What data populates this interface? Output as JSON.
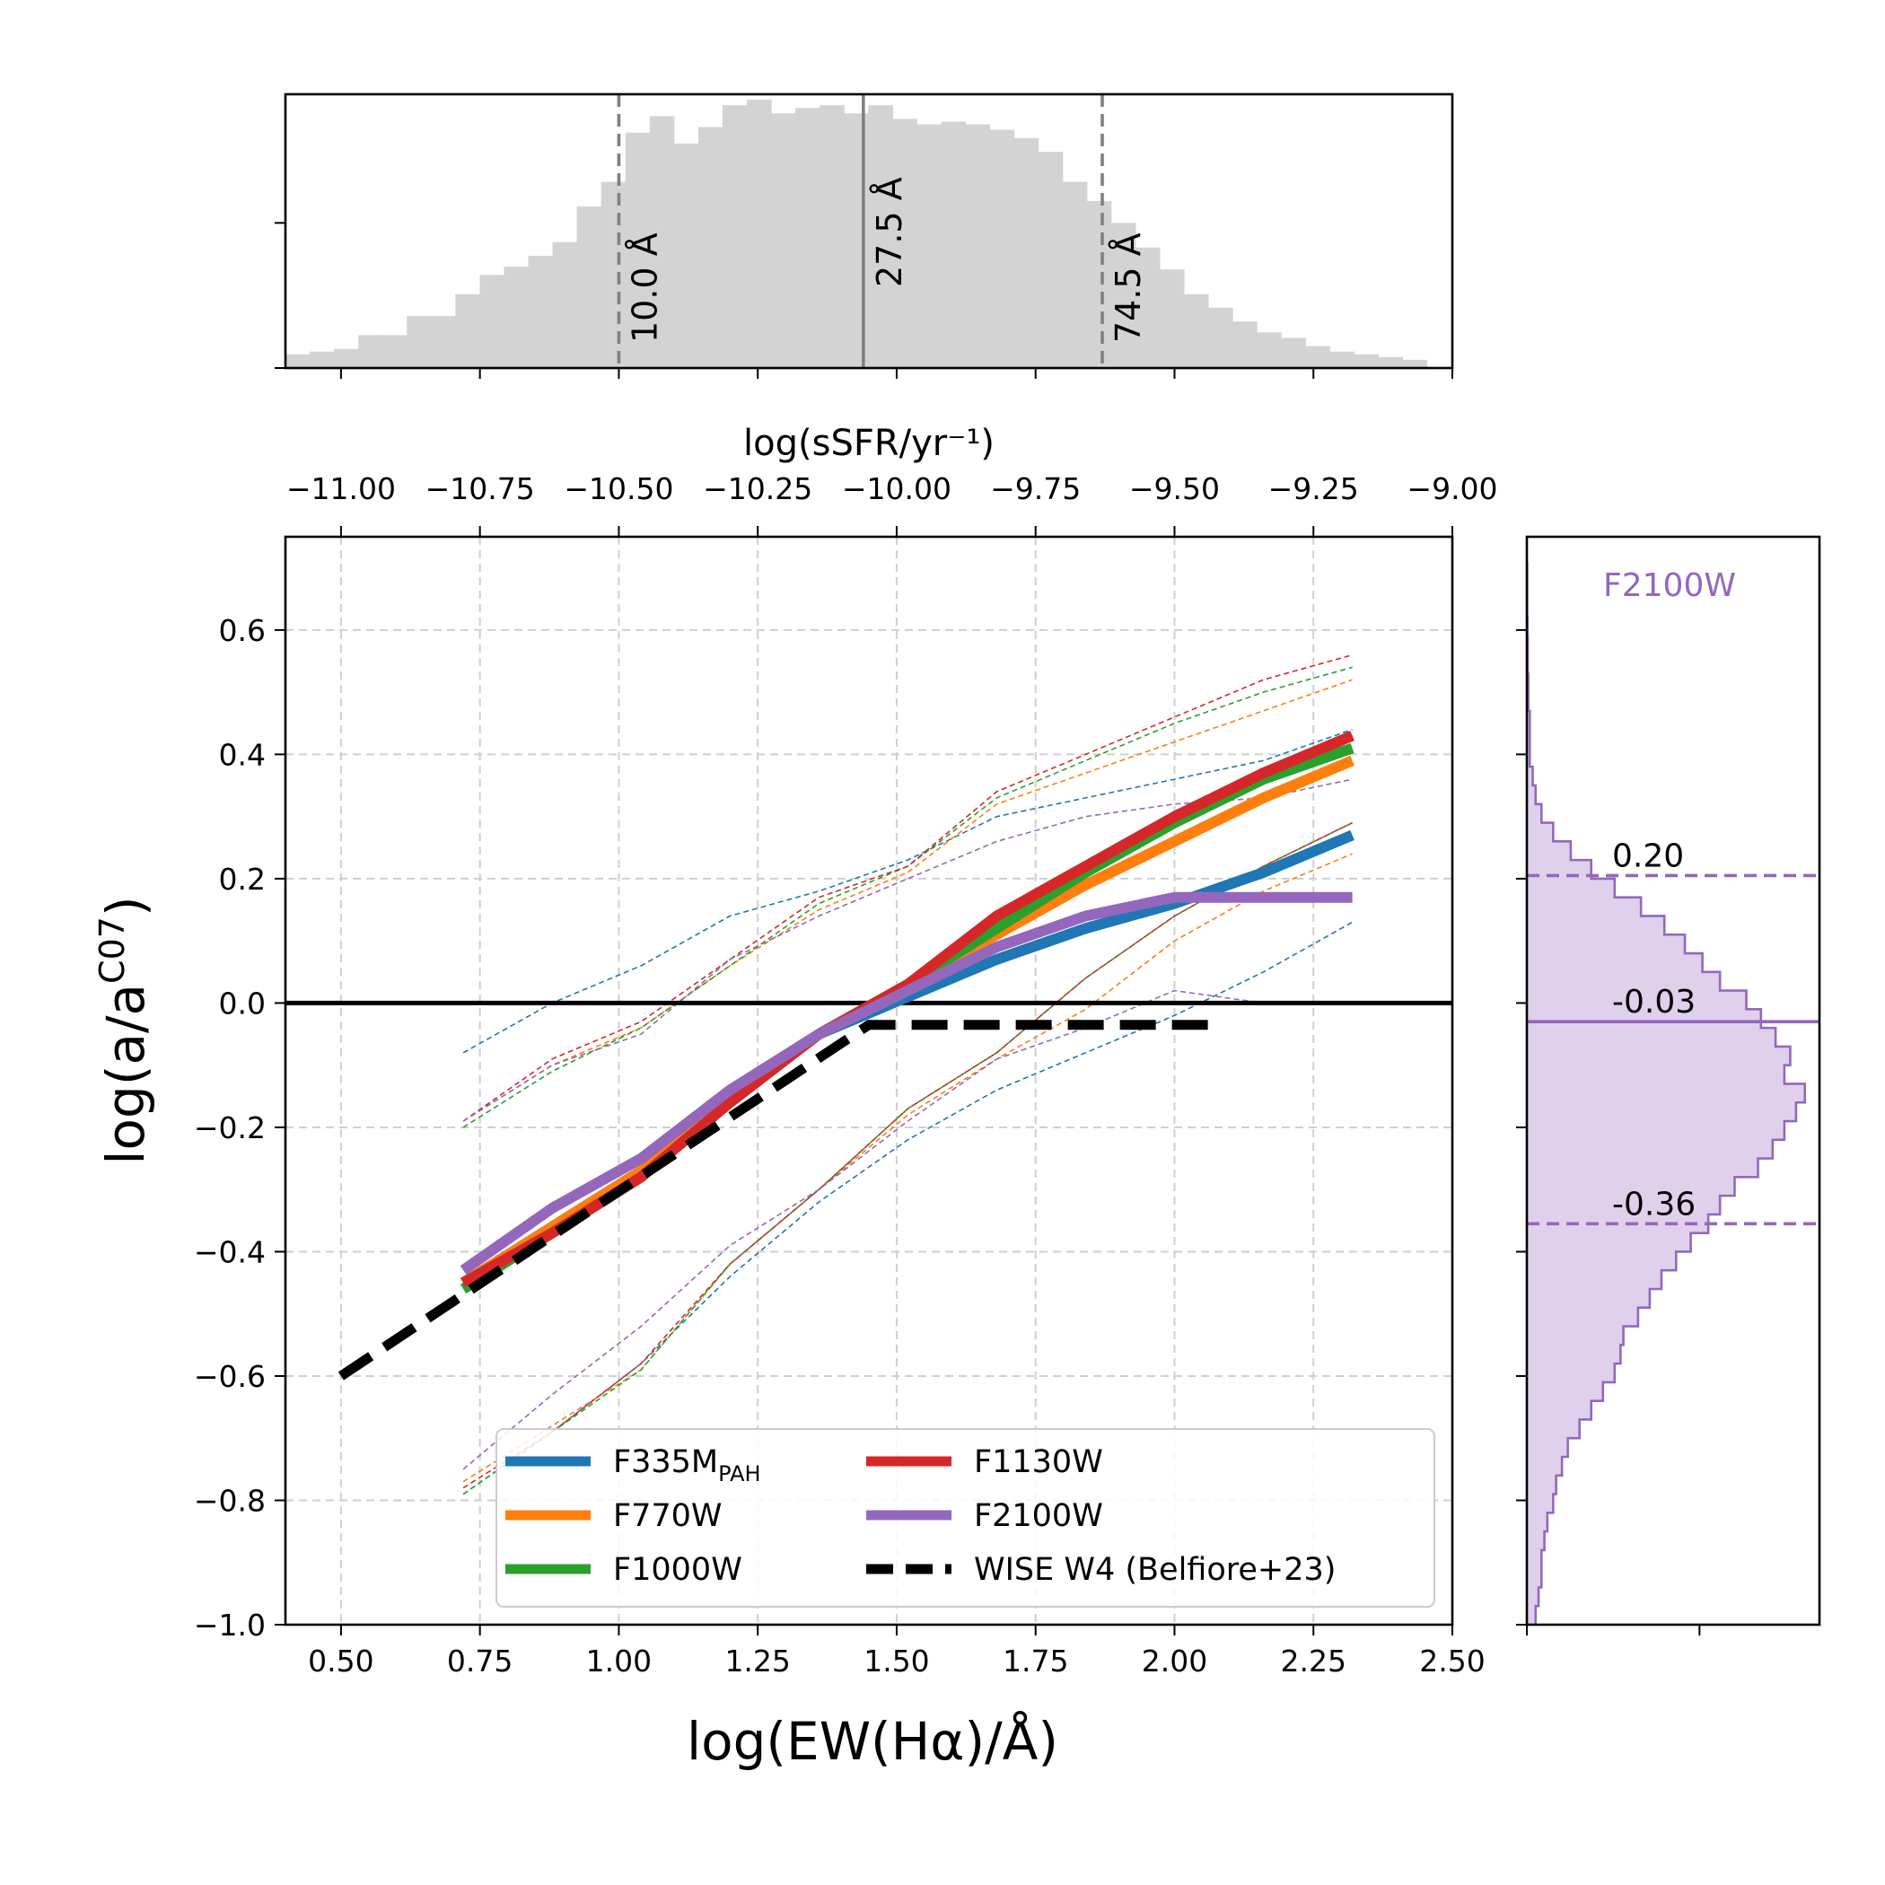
{
  "chart_data": [
    {
      "type": "histogram",
      "panel": "top",
      "xlabel": "log(sSFR/yr⁻¹)",
      "xlim": [
        0.4,
        2.5
      ],
      "x_tick_values": [
        0.5,
        0.75,
        1.0,
        1.25,
        1.5,
        1.75,
        2.0,
        2.25,
        2.5
      ],
      "x_tick_labels": [
        "−11.00",
        "−10.75",
        "−10.50",
        "−10.25",
        "−10.00",
        "−9.75",
        "−9.50",
        "−9.25",
        "−9.00"
      ],
      "ylim": [
        0,
        1
      ],
      "y_tick_values": [
        0.53
      ],
      "bin_start": 0.4,
      "bin_width": 0.0437,
      "counts": [
        0.05,
        0.06,
        0.07,
        0.12,
        0.12,
        0.19,
        0.19,
        0.27,
        0.34,
        0.37,
        0.41,
        0.46,
        0.59,
        0.68,
        0.86,
        0.92,
        0.82,
        0.88,
        0.96,
        0.98,
        0.93,
        0.95,
        0.96,
        0.93,
        0.96,
        0.91,
        0.89,
        0.9,
        0.89,
        0.87,
        0.84,
        0.79,
        0.68,
        0.61,
        0.53,
        0.44,
        0.36,
        0.27,
        0.22,
        0.17,
        0.13,
        0.11,
        0.08,
        0.06,
        0.05,
        0.04,
        0.03
      ],
      "vlines": [
        {
          "x": 1.0,
          "label": "10.0 Å",
          "style": "dashed"
        },
        {
          "x": 1.44,
          "label": "27.5 Å",
          "style": "solid"
        },
        {
          "x": 1.87,
          "label": "74.5 Å",
          "style": "dashed"
        }
      ]
    },
    {
      "type": "line",
      "panel": "main",
      "xlabel": "log(EW(Hα)/Å)",
      "ylabel_base": "log(a/a",
      "ylabel_sup": "C07",
      "ylabel_end": ")",
      "xlim": [
        0.4,
        2.5
      ],
      "ylim": [
        -1.0,
        0.75
      ],
      "x_ticks": [
        0.5,
        0.75,
        1.0,
        1.25,
        1.5,
        1.75,
        2.0,
        2.25,
        2.5
      ],
      "x_tick_labels": [
        "0.50",
        "0.75",
        "1.00",
        "1.25",
        "1.50",
        "1.75",
        "2.00",
        "2.25",
        "2.50"
      ],
      "y_ticks": [
        -1.0,
        -0.8,
        -0.6,
        -0.4,
        -0.2,
        0.0,
        0.2,
        0.4,
        0.6
      ],
      "y_tick_labels": [
        "−1.0",
        "−0.8",
        "−0.6",
        "−0.4",
        "−0.2",
        "0.0",
        "0.2",
        "0.4",
        "0.6"
      ],
      "grid": true,
      "hline": 0.0,
      "x": [
        0.72,
        0.88,
        1.04,
        1.2,
        1.36,
        1.52,
        1.68,
        1.84,
        2.0,
        2.16,
        2.32
      ],
      "series": [
        {
          "name": "F335M",
          "sub": "PAH",
          "color": "#1f77b4",
          "values": [
            -0.45,
            -0.36,
            -0.27,
            -0.16,
            -0.05,
            0.01,
            0.07,
            0.12,
            0.16,
            0.21,
            0.27
          ],
          "upper": [
            -0.08,
            0.0,
            0.06,
            0.14,
            0.18,
            0.23,
            0.3,
            0.33,
            0.36,
            0.39,
            0.44
          ],
          "lower": [
            -0.79,
            -0.69,
            -0.58,
            -0.44,
            -0.32,
            -0.22,
            -0.14,
            -0.08,
            -0.02,
            0.05,
            0.13
          ]
        },
        {
          "name": "F770W",
          "sub": "",
          "color": "#ff7f0e",
          "values": [
            -0.45,
            -0.36,
            -0.27,
            -0.15,
            -0.05,
            0.03,
            0.11,
            0.19,
            0.26,
            0.33,
            0.39
          ],
          "upper": [
            -0.19,
            -0.1,
            -0.04,
            0.06,
            0.15,
            0.21,
            0.32,
            0.37,
            0.42,
            0.47,
            0.52
          ],
          "lower": [
            -0.77,
            -0.68,
            -0.59,
            -0.42,
            -0.3,
            -0.18,
            -0.09,
            -0.01,
            0.1,
            0.18,
            0.24
          ]
        },
        {
          "name": "F1000W",
          "sub": "",
          "color": "#2ca02c",
          "values": [
            -0.46,
            -0.37,
            -0.28,
            -0.16,
            -0.05,
            0.03,
            0.12,
            0.21,
            0.29,
            0.36,
            0.41
          ],
          "upper": [
            -0.2,
            -0.11,
            -0.04,
            0.06,
            0.16,
            0.22,
            0.33,
            0.39,
            0.45,
            0.5,
            0.54
          ],
          "lower": [
            -0.79,
            -0.69,
            -0.59,
            -0.42,
            -0.3,
            -0.17,
            -0.08,
            0.04,
            0.14,
            0.22,
            0.29
          ]
        },
        {
          "name": "F1130W",
          "sub": "",
          "color": "#d62728",
          "values": [
            -0.45,
            -0.37,
            -0.28,
            -0.16,
            -0.05,
            0.03,
            0.14,
            0.22,
            0.3,
            0.37,
            0.43
          ],
          "upper": [
            -0.19,
            -0.09,
            -0.03,
            0.07,
            0.17,
            0.22,
            0.34,
            0.4,
            0.46,
            0.52,
            0.56
          ],
          "lower": [
            -0.78,
            -0.69,
            -0.58,
            -0.42,
            -0.3,
            -0.17,
            -0.08,
            0.04,
            0.14,
            0.22,
            0.29
          ]
        },
        {
          "name": "F2100W",
          "sub": "",
          "color": "#9467bd",
          "values": [
            -0.43,
            -0.33,
            -0.25,
            -0.14,
            -0.05,
            0.02,
            0.09,
            0.14,
            0.17,
            0.17,
            0.17
          ],
          "upper": [
            -0.19,
            -0.1,
            -0.05,
            0.07,
            0.14,
            0.2,
            0.26,
            0.3,
            0.32,
            0.33,
            0.36
          ],
          "lower": [
            -0.75,
            -0.63,
            -0.52,
            -0.39,
            -0.3,
            -0.19,
            -0.09,
            -0.04,
            0.02,
            0.0,
            0.0
          ]
        }
      ],
      "reference": {
        "name": "WISE W4 (Belfiore+23)",
        "color": "#000000",
        "x": [
          0.5,
          1.45,
          2.08
        ],
        "values": [
          -0.6,
          -0.035,
          -0.035
        ]
      },
      "legend": {
        "position": "lower-center",
        "columns": 2
      }
    },
    {
      "type": "histogram",
      "panel": "right",
      "orientation": "horizontal",
      "title": "F2100W",
      "color": "#9467bd",
      "ylim": [
        -1.0,
        0.75
      ],
      "xlim": [
        0,
        1
      ],
      "x_tick_values": [
        0,
        0.59
      ],
      "y_tick_values": [
        -1.0,
        -0.8,
        -0.6,
        -0.4,
        -0.2,
        0.0,
        0.2,
        0.4,
        0.6
      ],
      "bin_start": -1.0,
      "bin_width": 0.03,
      "counts": [
        0.03,
        0.04,
        0.05,
        0.05,
        0.06,
        0.07,
        0.09,
        0.1,
        0.12,
        0.14,
        0.18,
        0.22,
        0.26,
        0.3,
        0.32,
        0.33,
        0.38,
        0.42,
        0.46,
        0.51,
        0.56,
        0.62,
        0.66,
        0.71,
        0.79,
        0.84,
        0.88,
        0.92,
        0.95,
        0.88,
        0.9,
        0.85,
        0.8,
        0.75,
        0.66,
        0.6,
        0.54,
        0.47,
        0.39,
        0.3,
        0.22,
        0.15,
        0.09,
        0.05,
        0.03,
        0.02,
        0.01,
        0.01,
        0.01,
        0.005,
        0.005,
        0.003,
        0.003,
        0.002,
        0.001,
        0.001,
        0.001
      ],
      "hlines": [
        {
          "y": 0.205,
          "label": "0.20",
          "style": "dashed"
        },
        {
          "y": -0.03,
          "label": "-0.03",
          "style": "solid"
        },
        {
          "y": -0.355,
          "label": "-0.36",
          "style": "dashed"
        }
      ]
    }
  ]
}
